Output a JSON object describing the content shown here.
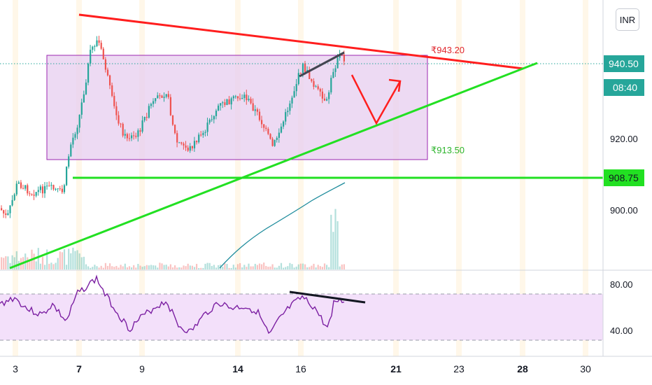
{
  "chart_data": {
    "type": "candlestick",
    "currency_label": "INR",
    "x_ticks": [
      "3",
      "7",
      "9",
      "14",
      "16",
      "21",
      "23",
      "28",
      "30"
    ],
    "price_axis": {
      "ticks": [
        "940.50",
        "920.00",
        "908.75",
        "900.00"
      ],
      "ylim": [
        880,
        955
      ]
    },
    "last_price_tag": "940.50",
    "countdown_tag": "08:40",
    "support_tag": "908.75",
    "range_box": {
      "top_label": "₹943.20",
      "bottom_label": "₹913.50",
      "top": 943.2,
      "bottom": 913.5
    },
    "rsi_panel": {
      "ticks": [
        "80.00",
        "40.00"
      ],
      "ylim": [
        25,
        90
      ],
      "upper_band": 70,
      "lower_band": 30
    },
    "colors": {
      "up": "#26a69a",
      "down": "#ef5350",
      "resistance": "#ff1e1e",
      "support": "#22e022",
      "box_fill": "#e5cbee",
      "box_border": "#9c27b0",
      "rsi_line": "#7b1fa2",
      "rsi_fill": "#f3e0fa",
      "ma_line": "#1e8c9c",
      "divergence": "#131722"
    }
  }
}
